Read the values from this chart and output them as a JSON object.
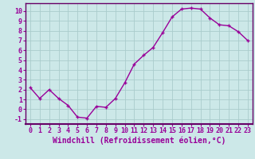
{
  "x": [
    0,
    1,
    2,
    3,
    4,
    5,
    6,
    7,
    8,
    9,
    10,
    11,
    12,
    13,
    14,
    15,
    16,
    17,
    18,
    19,
    20,
    21,
    22,
    23
  ],
  "y": [
    2.2,
    1.1,
    2.0,
    1.1,
    0.4,
    -0.8,
    -0.9,
    0.3,
    0.2,
    1.1,
    2.7,
    4.6,
    5.5,
    6.3,
    7.8,
    9.4,
    10.2,
    10.3,
    10.2,
    9.3,
    8.6,
    8.5,
    7.9,
    7.0
  ],
  "line_color": "#990099",
  "marker": "+",
  "bg_color": "#cce8e8",
  "grid_color": "#aacccc",
  "xlabel": "Windchill (Refroidissement éolien,°C)",
  "xlabel_color": "#990099",
  "tick_color": "#990099",
  "spine_color": "#660066",
  "ylim": [
    -1.5,
    10.8
  ],
  "xlim": [
    -0.5,
    23.5
  ],
  "yticks": [
    -1,
    0,
    1,
    2,
    3,
    4,
    5,
    6,
    7,
    8,
    9,
    10
  ],
  "xticks": [
    0,
    1,
    2,
    3,
    4,
    5,
    6,
    7,
    8,
    9,
    10,
    11,
    12,
    13,
    14,
    15,
    16,
    17,
    18,
    19,
    20,
    21,
    22,
    23
  ],
  "xtick_labels": [
    "0",
    "1",
    "2",
    "3",
    "4",
    "5",
    "6",
    "7",
    "8",
    "9",
    "10",
    "11",
    "12",
    "13",
    "14",
    "15",
    "16",
    "17",
    "18",
    "19",
    "20",
    "21",
    "22",
    "23"
  ],
  "font_family": "monospace",
  "xlabel_fontsize": 7,
  "tick_fontsize": 6,
  "linewidth": 1.0,
  "markersize": 3.5,
  "markeredgewidth": 1.0
}
